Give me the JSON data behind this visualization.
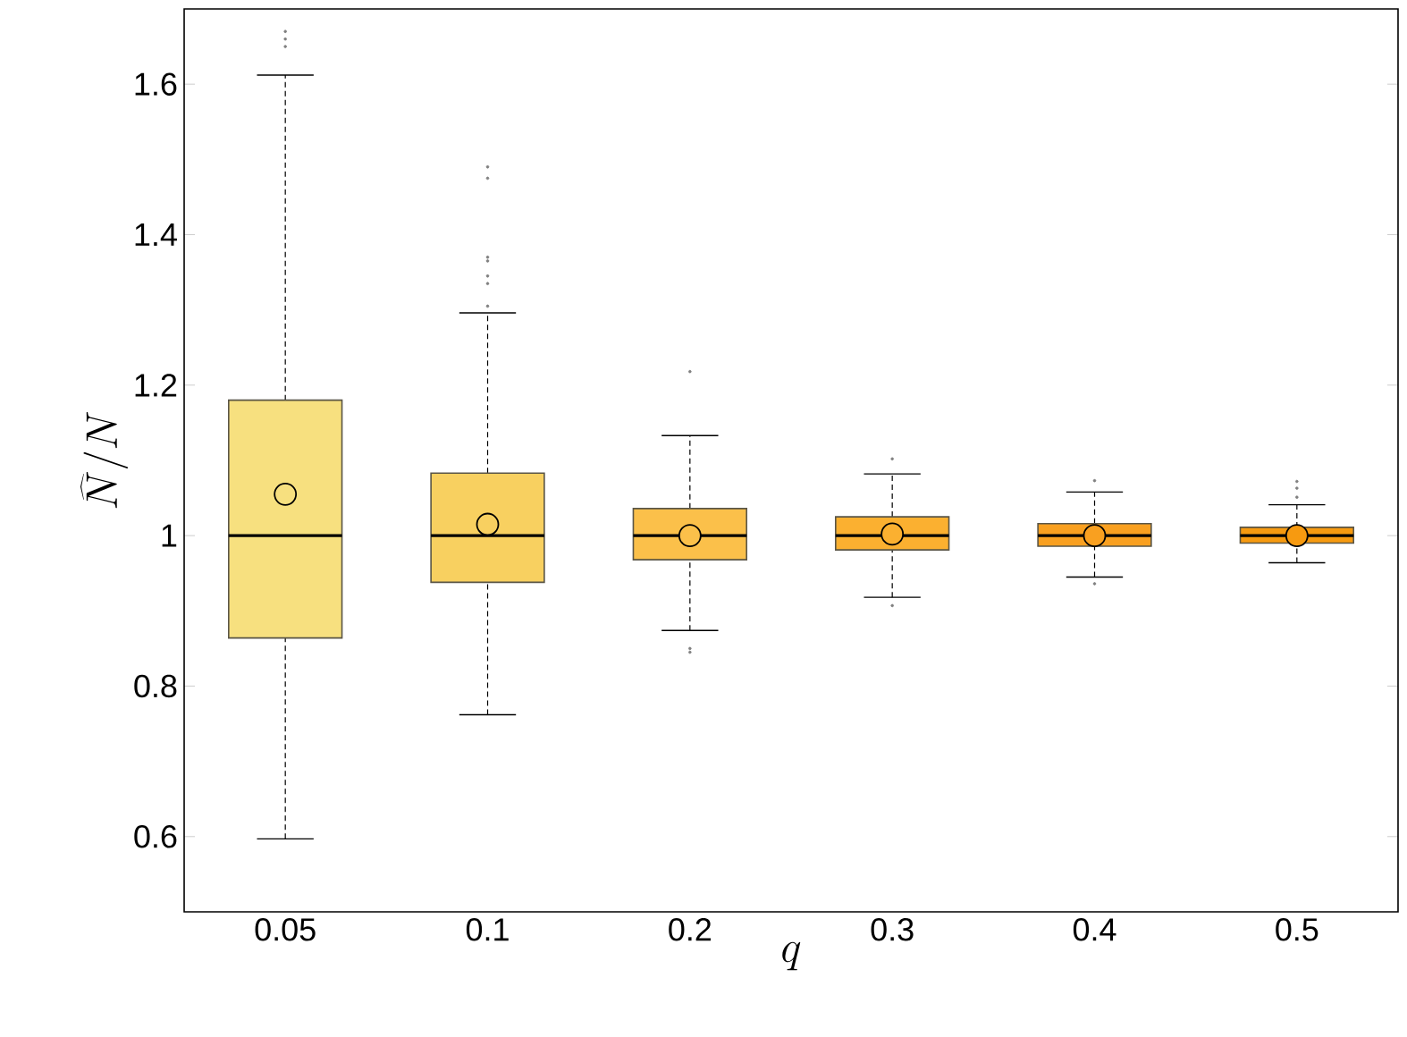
{
  "chart_data": {
    "type": "box",
    "xlabel": "q",
    "ylabel": "\\widehat{N}/N",
    "categories": [
      "0.05",
      "0.1",
      "0.2",
      "0.3",
      "0.4",
      "0.5"
    ],
    "colors": [
      "#f7e07f",
      "#f8d060",
      "#fbc04a",
      "#fbb030",
      "#f9a020",
      "#f79a10"
    ],
    "boxes": [
      {
        "low": 0.597,
        "q1": 0.864,
        "median": 1.0,
        "q3": 1.18,
        "high": 1.612,
        "mean": 1.055,
        "outliers": [
          1.67,
          1.66,
          1.65
        ]
      },
      {
        "low": 0.762,
        "q1": 0.938,
        "median": 1.0,
        "q3": 1.083,
        "high": 1.296,
        "mean": 1.015,
        "outliers": [
          1.49,
          1.475,
          1.37,
          1.365,
          1.345,
          1.335,
          1.305
        ]
      },
      {
        "low": 0.874,
        "q1": 0.968,
        "median": 1.0,
        "q3": 1.036,
        "high": 1.133,
        "mean": 1.0,
        "outliers": [
          1.218,
          0.85,
          0.845
        ]
      },
      {
        "low": 0.918,
        "q1": 0.981,
        "median": 1.0,
        "q3": 1.025,
        "high": 1.082,
        "mean": 1.002,
        "outliers": [
          1.102,
          0.907
        ]
      },
      {
        "low": 0.945,
        "q1": 0.986,
        "median": 1.0,
        "q3": 1.016,
        "high": 1.058,
        "mean": 1.0,
        "outliers": [
          1.073,
          0.936
        ]
      },
      {
        "low": 0.964,
        "q1": 0.99,
        "median": 1.0,
        "q3": 1.011,
        "high": 1.041,
        "mean": 1.0,
        "outliers": [
          1.072,
          1.063,
          1.051
        ]
      }
    ],
    "ylim": [
      0.5,
      1.7
    ],
    "yticks": [
      0.6,
      0.8,
      1,
      1.2,
      1.4,
      1.6
    ],
    "grid": false
  }
}
